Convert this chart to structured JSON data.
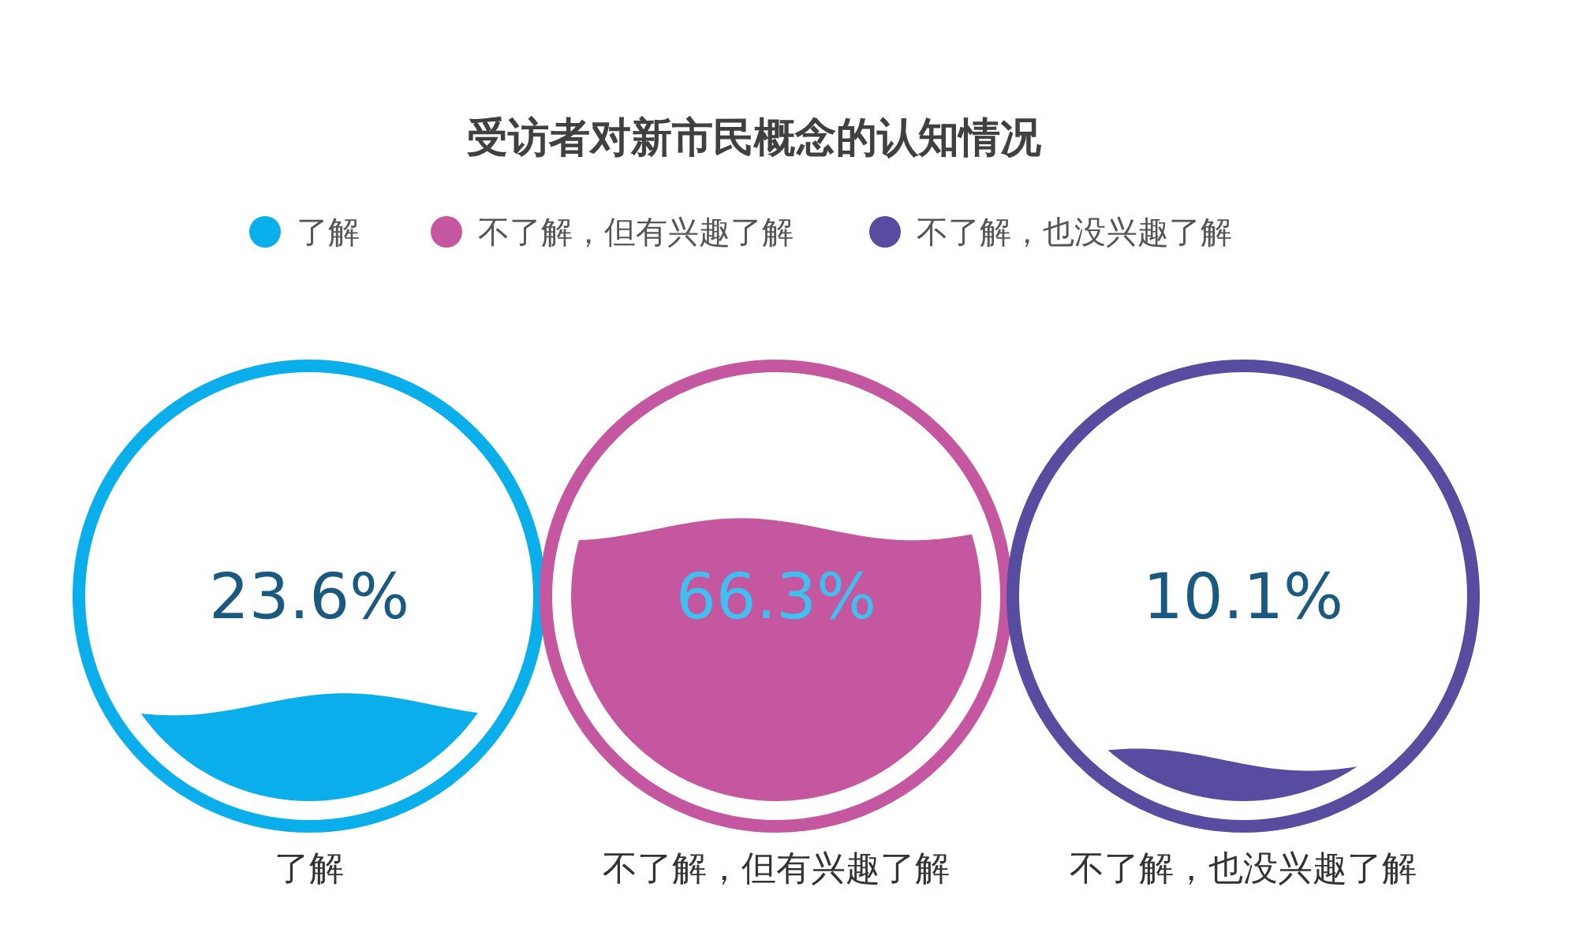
{
  "chart_data": {
    "type": "other",
    "title": "受访者对新市民概念的认知情况",
    "categories": [
      "了解",
      "不了解，但有兴趣了解",
      "不了解，也没兴趣了解"
    ],
    "series": [
      {
        "name": "了解",
        "color": "#0aaeea",
        "values": [
          23.6,
          null,
          null
        ],
        "value_labels": [
          "23.6%",
          null,
          null
        ]
      },
      {
        "name": "不了解，但有兴趣了解",
        "color": "#c4579f",
        "values": [
          null,
          66.3,
          null
        ],
        "value_labels": [
          null,
          "66.3%",
          null
        ]
      },
      {
        "name": "不了解，也没兴趣了解",
        "color": "#574ca0",
        "values": [
          null,
          null,
          10.1
        ],
        "value_labels": [
          null,
          null,
          "10.1%"
        ]
      }
    ],
    "legend": "top"
  }
}
